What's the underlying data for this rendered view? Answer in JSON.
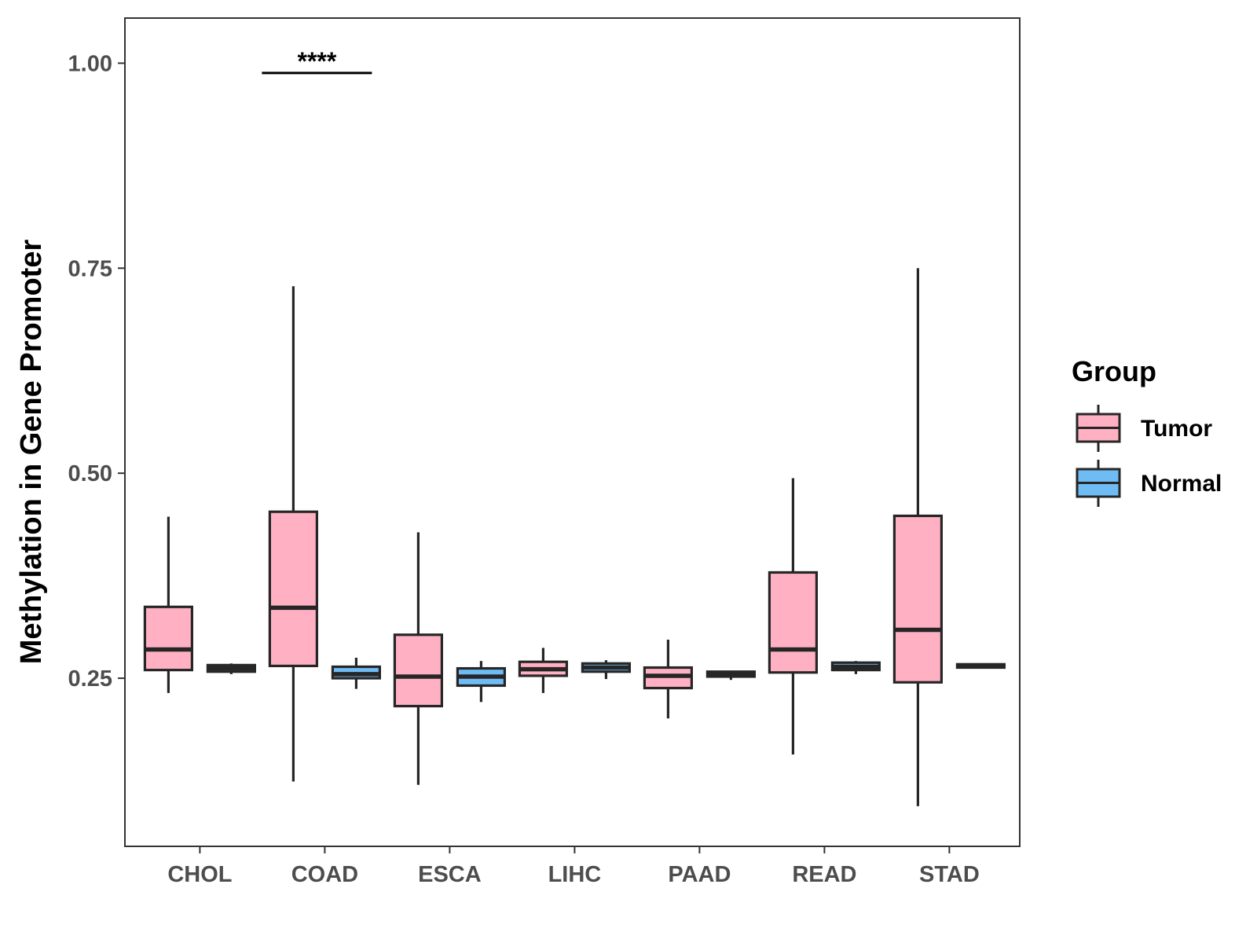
{
  "chart_data": {
    "type": "boxplot",
    "title": "",
    "xlabel": "",
    "ylabel": "Methylation in Gene Promoter",
    "ylim": [
      0.045,
      1.055
    ],
    "yticks": [
      0.25,
      0.5,
      0.75,
      1.0
    ],
    "ytick_labels": [
      "0.25",
      "0.50",
      "0.75",
      "1.00"
    ],
    "categories": [
      "CHOL",
      "COAD",
      "ESCA",
      "LIHC",
      "PAAD",
      "READ",
      "STAD"
    ],
    "legend": {
      "title": "Group",
      "placement": "right",
      "entries": [
        {
          "name": "Tumor",
          "color": "#ffb0c3"
        },
        {
          "name": "Normal",
          "color": "#6fbcf5"
        }
      ]
    },
    "series": [
      {
        "name": "Tumor",
        "color": "#ffb0c3",
        "boxes": [
          {
            "category": "CHOL",
            "min": 0.232,
            "q1": 0.26,
            "median": 0.285,
            "q3": 0.337,
            "max": 0.447
          },
          {
            "category": "COAD",
            "min": 0.124,
            "q1": 0.265,
            "median": 0.336,
            "q3": 0.453,
            "max": 0.728
          },
          {
            "category": "ESCA",
            "min": 0.12,
            "q1": 0.216,
            "median": 0.252,
            "q3": 0.303,
            "max": 0.428
          },
          {
            "category": "LIHC",
            "min": 0.232,
            "q1": 0.253,
            "median": 0.261,
            "q3": 0.27,
            "max": 0.287
          },
          {
            "category": "PAAD",
            "min": 0.201,
            "q1": 0.238,
            "median": 0.253,
            "q3": 0.263,
            "max": 0.297
          },
          {
            "category": "READ",
            "min": 0.157,
            "q1": 0.257,
            "median": 0.285,
            "q3": 0.379,
            "max": 0.494
          },
          {
            "category": "STAD",
            "min": 0.094,
            "q1": 0.245,
            "median": 0.309,
            "q3": 0.448,
            "max": 0.75
          }
        ]
      },
      {
        "name": "Normal",
        "color": "#6fbcf5",
        "boxes": [
          {
            "category": "CHOL",
            "min": 0.255,
            "q1": 0.258,
            "median": 0.262,
            "q3": 0.266,
            "max": 0.268
          },
          {
            "category": "COAD",
            "min": 0.237,
            "q1": 0.25,
            "median": 0.255,
            "q3": 0.264,
            "max": 0.275
          },
          {
            "category": "ESCA",
            "min": 0.221,
            "q1": 0.241,
            "median": 0.252,
            "q3": 0.262,
            "max": 0.271
          },
          {
            "category": "LIHC",
            "min": 0.249,
            "q1": 0.258,
            "median": 0.263,
            "q3": 0.268,
            "max": 0.272
          },
          {
            "category": "PAAD",
            "min": 0.248,
            "q1": 0.252,
            "median": 0.255,
            "q3": 0.258,
            "max": 0.259
          },
          {
            "category": "READ",
            "min": 0.255,
            "q1": 0.26,
            "median": 0.264,
            "q3": 0.269,
            "max": 0.271
          },
          {
            "category": "STAD",
            "min": 0.262,
            "q1": 0.263,
            "median": 0.265,
            "q3": 0.267,
            "max": 0.268
          }
        ]
      }
    ],
    "annotations": [
      {
        "category": "COAD",
        "label": "****",
        "y": 0.988
      }
    ]
  }
}
